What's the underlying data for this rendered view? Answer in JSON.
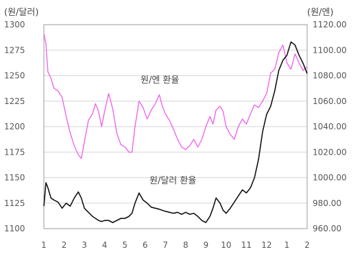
{
  "chart_data": {
    "type": "line",
    "left_unit": "(원/달러)",
    "right_unit": "(원/엔)",
    "x_ticks": [
      "1",
      "2",
      "3",
      "4",
      "5",
      "6",
      "7",
      "8",
      "9",
      "10",
      "11",
      "12",
      "1",
      "2"
    ],
    "left_axis": {
      "range": [
        1100,
        1300
      ],
      "ticks": [
        "1300",
        "1275",
        "1250",
        "1225",
        "1200",
        "1175",
        "1150",
        "1125",
        "1100"
      ]
    },
    "right_axis": {
      "range": [
        960,
        1120
      ],
      "ticks": [
        "1120.00",
        "1100.00",
        "1080.00",
        "1060.00",
        "1040.00",
        "1020.00",
        "1000.00",
        "980.00",
        "960.00"
      ]
    },
    "grid": "horizontal",
    "series": [
      {
        "name": "원/엔 환율",
        "axis": "right",
        "color": "#ee66ee",
        "points": [
          [
            1.0,
            1113
          ],
          [
            1.1,
            1105
          ],
          [
            1.2,
            1083
          ],
          [
            1.35,
            1078
          ],
          [
            1.5,
            1070
          ],
          [
            1.7,
            1068
          ],
          [
            1.9,
            1063
          ],
          [
            2.1,
            1048
          ],
          [
            2.3,
            1035
          ],
          [
            2.5,
            1025
          ],
          [
            2.7,
            1018
          ],
          [
            2.85,
            1015
          ],
          [
            3.0,
            1028
          ],
          [
            3.2,
            1045
          ],
          [
            3.4,
            1050
          ],
          [
            3.55,
            1058
          ],
          [
            3.7,
            1052
          ],
          [
            3.85,
            1040
          ],
          [
            4.0,
            1052
          ],
          [
            4.2,
            1066
          ],
          [
            4.4,
            1054
          ],
          [
            4.6,
            1035
          ],
          [
            4.8,
            1026
          ],
          [
            5.0,
            1024
          ],
          [
            5.2,
            1020
          ],
          [
            5.35,
            1020
          ],
          [
            5.5,
            1040
          ],
          [
            5.7,
            1060
          ],
          [
            5.9,
            1055
          ],
          [
            6.1,
            1046
          ],
          [
            6.3,
            1053
          ],
          [
            6.5,
            1058
          ],
          [
            6.7,
            1065
          ],
          [
            6.85,
            1056
          ],
          [
            7.0,
            1050
          ],
          [
            7.2,
            1045
          ],
          [
            7.4,
            1038
          ],
          [
            7.6,
            1030
          ],
          [
            7.8,
            1024
          ],
          [
            8.0,
            1022
          ],
          [
            8.2,
            1025
          ],
          [
            8.4,
            1030
          ],
          [
            8.6,
            1024
          ],
          [
            8.8,
            1030
          ],
          [
            9.0,
            1040
          ],
          [
            9.2,
            1048
          ],
          [
            9.35,
            1042
          ],
          [
            9.5,
            1053
          ],
          [
            9.7,
            1056
          ],
          [
            9.85,
            1052
          ],
          [
            10.0,
            1040
          ],
          [
            10.2,
            1034
          ],
          [
            10.4,
            1030
          ],
          [
            10.6,
            1040
          ],
          [
            10.8,
            1046
          ],
          [
            11.0,
            1042
          ],
          [
            11.2,
            1050
          ],
          [
            11.4,
            1057
          ],
          [
            11.6,
            1055
          ],
          [
            11.8,
            1060
          ],
          [
            12.0,
            1066
          ],
          [
            12.2,
            1082
          ],
          [
            12.4,
            1085
          ],
          [
            12.6,
            1098
          ],
          [
            12.8,
            1104
          ],
          [
            13.0,
            1090
          ],
          [
            13.2,
            1085
          ],
          [
            13.4,
            1097
          ],
          [
            13.6,
            1090
          ],
          [
            13.8,
            1084
          ],
          [
            14.0,
            1087
          ]
        ]
      },
      {
        "name": "원/달러 환율",
        "axis": "left",
        "color": "#111111",
        "points": [
          [
            1.0,
            1122
          ],
          [
            1.1,
            1145
          ],
          [
            1.2,
            1140
          ],
          [
            1.35,
            1130
          ],
          [
            1.5,
            1128
          ],
          [
            1.7,
            1126
          ],
          [
            1.9,
            1120
          ],
          [
            2.1,
            1125
          ],
          [
            2.3,
            1122
          ],
          [
            2.5,
            1130
          ],
          [
            2.7,
            1136
          ],
          [
            2.85,
            1130
          ],
          [
            3.0,
            1120
          ],
          [
            3.2,
            1116
          ],
          [
            3.4,
            1112
          ],
          [
            3.55,
            1110
          ],
          [
            3.7,
            1108
          ],
          [
            3.85,
            1107
          ],
          [
            4.0,
            1108
          ],
          [
            4.2,
            1108
          ],
          [
            4.4,
            1106
          ],
          [
            4.6,
            1108
          ],
          [
            4.8,
            1110
          ],
          [
            5.0,
            1110
          ],
          [
            5.2,
            1112
          ],
          [
            5.35,
            1115
          ],
          [
            5.5,
            1125
          ],
          [
            5.7,
            1135
          ],
          [
            5.9,
            1128
          ],
          [
            6.1,
            1125
          ],
          [
            6.3,
            1121
          ],
          [
            6.5,
            1120
          ],
          [
            6.7,
            1119
          ],
          [
            6.85,
            1118
          ],
          [
            7.0,
            1117
          ],
          [
            7.2,
            1116
          ],
          [
            7.4,
            1115
          ],
          [
            7.6,
            1116
          ],
          [
            7.8,
            1114
          ],
          [
            8.0,
            1116
          ],
          [
            8.2,
            1114
          ],
          [
            8.4,
            1115
          ],
          [
            8.6,
            1112
          ],
          [
            8.8,
            1108
          ],
          [
            9.0,
            1106
          ],
          [
            9.2,
            1112
          ],
          [
            9.35,
            1120
          ],
          [
            9.5,
            1130
          ],
          [
            9.7,
            1125
          ],
          [
            9.85,
            1118
          ],
          [
            10.0,
            1115
          ],
          [
            10.2,
            1120
          ],
          [
            10.4,
            1126
          ],
          [
            10.6,
            1132
          ],
          [
            10.8,
            1138
          ],
          [
            11.0,
            1135
          ],
          [
            11.2,
            1140
          ],
          [
            11.4,
            1150
          ],
          [
            11.6,
            1168
          ],
          [
            11.8,
            1195
          ],
          [
            12.0,
            1212
          ],
          [
            12.2,
            1220
          ],
          [
            12.4,
            1235
          ],
          [
            12.6,
            1255
          ],
          [
            12.8,
            1265
          ],
          [
            13.0,
            1270
          ],
          [
            13.2,
            1283
          ],
          [
            13.4,
            1280
          ],
          [
            13.6,
            1270
          ],
          [
            13.8,
            1262
          ],
          [
            14.0,
            1252
          ]
        ]
      }
    ]
  }
}
